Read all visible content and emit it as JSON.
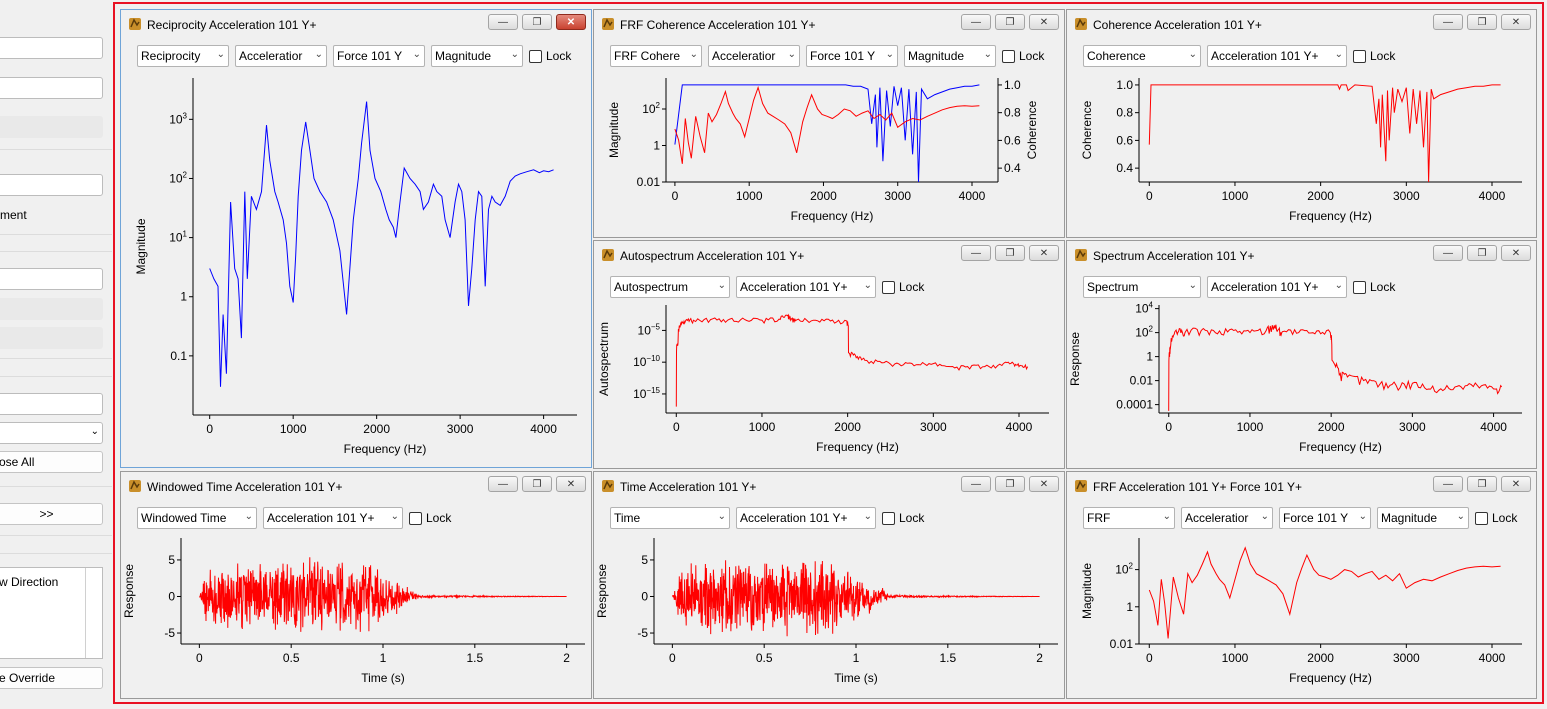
{
  "sidebar": {
    "field1": "n",
    "field2": "",
    "field3": "",
    "field4": "",
    "label_ment": "ment",
    "field5": "",
    "field6": "",
    "field7": "",
    "field8": "",
    "dropdown": "",
    "close_all": "ose All",
    "arrows": ">>",
    "list_item": "w Direction",
    "override": "e Override"
  },
  "windows": [
    {
      "id": "reciprocity",
      "title": "Reciprocity Acceleration 101 Y+",
      "selectors": [
        "Reciprocity",
        "Acceleratior",
        "Force 101 Y",
        "Magnitude"
      ],
      "lock": "Lock"
    },
    {
      "id": "frf-coherence",
      "title": "FRF Coherence Acceleration 101 Y+",
      "selectors": [
        "FRF Cohere",
        "Acceleratior",
        "Force 101 Y",
        "Magnitude"
      ],
      "lock": "Lock"
    },
    {
      "id": "coherence",
      "title": "Coherence Acceleration 101 Y+",
      "selectors": [
        "Coherence",
        "Acceleration 101 Y+"
      ],
      "lock": "Lock"
    },
    {
      "id": "autospectrum",
      "title": "Autospectrum Acceleration 101 Y+",
      "selectors": [
        "Autospectrum",
        "Acceleration 101 Y+"
      ],
      "lock": "Lock"
    },
    {
      "id": "spectrum",
      "title": "Spectrum Acceleration 101 Y+",
      "selectors": [
        "Spectrum",
        "Acceleration 101 Y+"
      ],
      "lock": "Lock"
    },
    {
      "id": "windowed-time",
      "title": "Windowed Time Acceleration 101 Y+",
      "selectors": [
        "Windowed Time",
        "Acceleration 101 Y+"
      ],
      "lock": "Lock"
    },
    {
      "id": "time",
      "title": "Time Acceleration 101 Y+",
      "selectors": [
        "Time",
        "Acceleration 101 Y+"
      ],
      "lock": "Lock"
    },
    {
      "id": "frf",
      "title": "FRF Acceleration 101 Y+ Force 101 Y+",
      "selectors": [
        "FRF",
        "Acceleratior",
        "Force 101 Y",
        "Magnitude"
      ],
      "lock": "Lock"
    }
  ],
  "chart_data": [
    {
      "type": "line",
      "panel": "reciprocity",
      "xlabel": "Frequency (Hz)",
      "ylabel": "Magnitude",
      "xlim": [
        -200,
        4400
      ],
      "yscale": "log",
      "ylim": [
        0.01,
        5000
      ],
      "xticks": [
        0,
        1000,
        2000,
        3000,
        4000
      ],
      "yticks": [
        {
          "v": 1000,
          "label": "10",
          "exp": "3"
        },
        {
          "v": 100,
          "label": "10",
          "exp": "2"
        },
        {
          "v": 10,
          "label": "10",
          "exp": "1"
        },
        {
          "v": 1,
          "label": "1"
        },
        {
          "v": 0.1,
          "label": "0.1"
        }
      ],
      "series": [
        {
          "color": "#0000ff",
          "x": [
            0,
            50,
            100,
            130,
            160,
            200,
            250,
            300,
            340,
            380,
            420,
            450,
            500,
            560,
            620,
            680,
            720,
            780,
            820,
            880,
            920,
            960,
            1000,
            1030,
            1060,
            1100,
            1150,
            1200,
            1250,
            1320,
            1400,
            1480,
            1560,
            1640,
            1720,
            1780,
            1820,
            1880,
            1920,
            1980,
            2050,
            2110,
            2150,
            2200,
            2230,
            2280,
            2330,
            2400,
            2460,
            2520,
            2560,
            2620,
            2680,
            2720,
            2780,
            2820,
            2880,
            2940,
            2980,
            3020,
            3060,
            3100,
            3140,
            3180,
            3220,
            3260,
            3300,
            3340,
            3380,
            3420,
            3480,
            3540,
            3600,
            3660,
            3720,
            3800,
            3880,
            3950,
            4000,
            4060,
            4120
          ],
          "y": [
            3,
            2,
            1.5,
            0.03,
            0.5,
            0.05,
            40,
            3,
            2,
            0.2,
            60,
            2,
            50,
            30,
            60,
            800,
            200,
            60,
            40,
            20,
            8,
            1.5,
            0.8,
            5,
            50,
            300,
            900,
            300,
            100,
            60,
            40,
            20,
            6,
            0.5,
            20,
            100,
            400,
            2000,
            300,
            100,
            60,
            30,
            20,
            15,
            10,
            40,
            150,
            100,
            80,
            60,
            30,
            40,
            80,
            60,
            50,
            20,
            10,
            40,
            80,
            60,
            20,
            0.7,
            3,
            20,
            60,
            50,
            1.5,
            30,
            50,
            40,
            35,
            50,
            90,
            110,
            120,
            130,
            140,
            125,
            135,
            130,
            140
          ]
        }
      ]
    },
    {
      "type": "line",
      "panel": "frf-coherence",
      "xlabel": "Frequency (Hz)",
      "ylabel": "Magnitude",
      "ylabel_right": "Coherence",
      "xlim": [
        -120,
        4350
      ],
      "yscale": "log",
      "ylim": [
        0.01,
        5000
      ],
      "xticks": [
        0,
        1000,
        2000,
        3000,
        4000
      ],
      "yticks": [
        {
          "v": 100,
          "label": "10",
          "exp": "2"
        },
        {
          "v": 1,
          "label": "1"
        },
        {
          "v": 0.01,
          "label": "0.01"
        }
      ],
      "y2lim": [
        0.3,
        1.05
      ],
      "y2ticks": [
        1.0,
        0.8,
        0.6,
        0.4
      ],
      "series": [
        {
          "name": "Coherence",
          "color": "#0000ff",
          "axis": "right",
          "x": [
            0,
            100,
            2300,
            2400,
            2500,
            2600,
            2650,
            2700,
            2720,
            2760,
            2800,
            2850,
            2900,
            2950,
            3000,
            3050,
            3100,
            3150,
            3200,
            3250,
            3280,
            3320,
            3400,
            3500,
            3600,
            3700,
            3800,
            3900,
            4000,
            4100
          ],
          "y": [
            0.57,
            1.0,
            1.0,
            0.99,
            0.99,
            0.97,
            0.72,
            0.93,
            0.55,
            0.98,
            0.45,
            0.96,
            0.7,
            0.99,
            0.85,
            0.98,
            0.6,
            0.97,
            0.5,
            0.95,
            0.3,
            0.97,
            0.9,
            0.93,
            0.95,
            0.97,
            0.98,
            0.99,
            0.99,
            1.0
          ]
        },
        {
          "name": "FRF",
          "color": "#ff0000",
          "axis": "left",
          "x": [
            0,
            50,
            100,
            140,
            180,
            220,
            280,
            340,
            400,
            450,
            500,
            560,
            620,
            680,
            720,
            780,
            820,
            880,
            940,
            1000,
            1060,
            1120,
            1180,
            1250,
            1320,
            1400,
            1480,
            1560,
            1640,
            1720,
            1780,
            1840,
            1920,
            1980,
            2050,
            2120,
            2200,
            2280,
            2360,
            2440,
            2520,
            2600,
            2680,
            2760,
            2840,
            2920,
            3000,
            3100,
            3200,
            3300,
            3400,
            3500,
            3600,
            3700,
            3800,
            3900,
            4000,
            4100
          ],
          "y": [
            8,
            2,
            0.1,
            30,
            1.5,
            0.2,
            40,
            3,
            0.4,
            60,
            20,
            50,
            200,
            900,
            200,
            60,
            30,
            15,
            3,
            30,
            300,
            1500,
            200,
            60,
            40,
            25,
            15,
            5,
            0.4,
            20,
            120,
            600,
            100,
            50,
            40,
            30,
            50,
            100,
            80,
            40,
            60,
            80,
            30,
            50,
            25,
            60,
            10,
            20,
            30,
            25,
            40,
            60,
            90,
            120,
            140,
            150,
            140,
            150
          ]
        }
      ]
    },
    {
      "type": "line",
      "panel": "coherence",
      "xlabel": "Frequency (Hz)",
      "ylabel": "Coherence",
      "xlim": [
        -120,
        4350
      ],
      "ylim": [
        0.3,
        1.05
      ],
      "xticks": [
        0,
        1000,
        2000,
        3000,
        4000
      ],
      "yticks": [
        1.0,
        0.8,
        0.6,
        0.4
      ],
      "series": [
        {
          "color": "#ff0000",
          "x": [
            0,
            20,
            40,
            2200,
            2220,
            2240,
            2300,
            2320,
            2400,
            2600,
            2650,
            2680,
            2700,
            2720,
            2760,
            2780,
            2800,
            2840,
            2860,
            2900,
            2950,
            3000,
            3040,
            3080,
            3120,
            3160,
            3200,
            3240,
            3260,
            3290,
            3320,
            3400,
            3500,
            3600,
            3700,
            3800,
            3900,
            4000,
            4100
          ],
          "y": [
            0.57,
            1.0,
            1.0,
            1.0,
            0.97,
            1.0,
            1.0,
            0.96,
            1.0,
            0.99,
            0.72,
            0.9,
            0.55,
            0.93,
            0.45,
            0.96,
            0.6,
            0.98,
            0.8,
            0.97,
            0.88,
            0.98,
            0.65,
            0.97,
            0.72,
            0.96,
            0.55,
            0.95,
            0.3,
            0.97,
            0.9,
            0.93,
            0.95,
            0.97,
            0.98,
            0.99,
            0.99,
            1.0,
            1.0
          ]
        }
      ]
    },
    {
      "type": "line",
      "panel": "autospectrum",
      "xlabel": "Frequency (Hz)",
      "ylabel": "Autospectrum",
      "xlim": [
        -120,
        4350
      ],
      "yscale": "log",
      "ylim": [
        1e-18,
        0.1
      ],
      "xticks": [
        0,
        1000,
        2000,
        3000,
        4000
      ],
      "yticks": [
        {
          "v": 1e-05,
          "label": "10",
          "exp": "−5"
        },
        {
          "v": 1e-10,
          "label": "10",
          "exp": "−10"
        },
        {
          "v": 1e-15,
          "label": "10",
          "exp": "−15"
        }
      ],
      "series": [
        {
          "color": "#ff0000",
          "x": [
            0,
            20,
            60,
            120,
            200,
            400,
            600,
            800,
            1000,
            1200,
            1300,
            1340,
            1400,
            1600,
            1800,
            1990,
            2010,
            2100,
            2200,
            2400,
            2600,
            2800,
            3000,
            3200,
            3400,
            3600,
            3800,
            3920,
            4000,
            4100
          ],
          "y": [
            1e-17,
            1e-07,
            0.0001,
            0.0005,
            0.0004,
            0.0005,
            0.0004,
            0.0005,
            0.0004,
            0.0006,
            0.002,
            0.0005,
            0.0004,
            0.0004,
            0.0003,
            0.0003,
            3e-09,
            5e-10,
            2e-10,
            8e-11,
            5e-11,
            4e-11,
            6e-11,
            2e-11,
            2e-11,
            2e-11,
            3e-11,
            1e-10,
            2e-11,
            2e-11
          ]
        }
      ]
    },
    {
      "type": "line",
      "panel": "spectrum",
      "xlabel": "Frequency (Hz)",
      "ylabel": "Response",
      "xlim": [
        -120,
        4350
      ],
      "yscale": "log",
      "ylim": [
        2e-05,
        20000
      ],
      "xticks": [
        0,
        1000,
        2000,
        3000,
        4000
      ],
      "yticks": [
        {
          "v": 10000,
          "label": "10",
          "exp": "4"
        },
        {
          "v": 100,
          "label": "10",
          "exp": "2"
        },
        {
          "v": 1,
          "label": "1"
        },
        {
          "v": 0.01,
          "label": "0.01"
        },
        {
          "v": 0.0001,
          "label": "0.0001"
        }
      ],
      "series": [
        {
          "color": "#ff0000",
          "x": [
            0,
            20,
            60,
            120,
            200,
            400,
            600,
            800,
            1000,
            1200,
            1300,
            1340,
            1400,
            1600,
            1800,
            1990,
            2010,
            2100,
            2200,
            2400,
            2600,
            2800,
            3000,
            3200,
            3400,
            3600,
            3800,
            4000,
            4100
          ],
          "y": [
            3e-05,
            5,
            60,
            120,
            100,
            150,
            80,
            150,
            100,
            150,
            400,
            150,
            120,
            100,
            80,
            100,
            0.5,
            0.03,
            0.02,
            0.01,
            0.005,
            0.004,
            0.006,
            0.002,
            0.002,
            0.003,
            0.004,
            0.002,
            0.003
          ]
        }
      ]
    },
    {
      "type": "line",
      "panel": "windowed-time",
      "xlabel": "Time (s)",
      "ylabel": "Response",
      "xlim": [
        -0.1,
        2.1
      ],
      "ylim": [
        -6.5,
        8
      ],
      "xticks": [
        0,
        0.5,
        1.0,
        1.5,
        2.0
      ],
      "yticks": [
        5,
        0,
        -5
      ],
      "series": [
        {
          "color": "#ff0000",
          "x": [
            0,
            0.05,
            0.9,
            1.0,
            1.2,
            2.0
          ],
          "y": [
            0,
            5,
            6,
            4,
            0.2,
            0
          ]
        }
      ]
    },
    {
      "type": "line",
      "panel": "time",
      "xlabel": "Time (s)",
      "ylabel": "Response",
      "xlim": [
        -0.1,
        2.1
      ],
      "ylim": [
        -6.5,
        8
      ],
      "xticks": [
        0,
        0.5,
        1.0,
        1.5,
        2.0
      ],
      "yticks": [
        5,
        0,
        -5
      ],
      "series": [
        {
          "color": "#ff0000",
          "x": [
            0,
            0.05,
            0.9,
            1.0,
            1.2,
            2.0
          ],
          "y": [
            0,
            5,
            6,
            4,
            0.2,
            0
          ]
        }
      ]
    },
    {
      "type": "line",
      "panel": "frf",
      "xlabel": "Frequency (Hz)",
      "ylabel": "Magnitude",
      "xlim": [
        -120,
        4350
      ],
      "yscale": "log",
      "ylim": [
        0.01,
        5000
      ],
      "xticks": [
        0,
        1000,
        2000,
        3000,
        4000
      ],
      "yticks": [
        {
          "v": 100,
          "label": "10",
          "exp": "2"
        },
        {
          "v": 1,
          "label": "1"
        },
        {
          "v": 0.01,
          "label": "0.01"
        }
      ],
      "series": [
        {
          "color": "#ff0000",
          "x": [
            0,
            50,
            100,
            140,
            180,
            220,
            280,
            340,
            400,
            450,
            500,
            560,
            620,
            680,
            720,
            780,
            820,
            880,
            940,
            1000,
            1060,
            1120,
            1180,
            1250,
            1320,
            1400,
            1480,
            1560,
            1640,
            1720,
            1780,
            1840,
            1920,
            1980,
            2050,
            2120,
            2200,
            2280,
            2360,
            2440,
            2520,
            2600,
            2680,
            2760,
            2840,
            2920,
            3000,
            3100,
            3200,
            3300,
            3400,
            3500,
            3600,
            3700,
            3800,
            3900,
            4000,
            4100
          ],
          "y": [
            8,
            2,
            0.1,
            30,
            1.5,
            0.02,
            40,
            3,
            0.4,
            60,
            20,
            50,
            200,
            900,
            200,
            60,
            30,
            15,
            3,
            30,
            300,
            1500,
            200,
            60,
            40,
            25,
            15,
            5,
            0.4,
            20,
            120,
            600,
            100,
            50,
            40,
            30,
            50,
            100,
            80,
            40,
            60,
            80,
            30,
            50,
            25,
            60,
            10,
            20,
            30,
            25,
            40,
            60,
            90,
            120,
            140,
            150,
            140,
            150
          ]
        }
      ]
    }
  ]
}
